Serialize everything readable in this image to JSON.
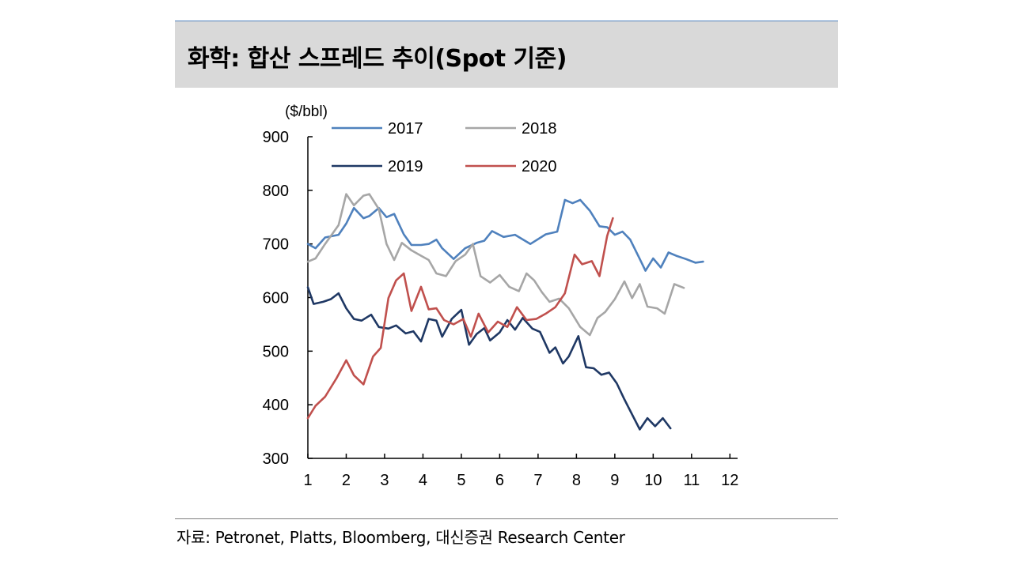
{
  "header": {
    "title": "화학: 합산 스프레드 추이(Spot 기준)"
  },
  "footer": {
    "source": "자료: Petronet, Platts, Bloomberg, 대신증권 Research Center"
  },
  "chart_data": {
    "type": "line",
    "title": "화학: 합산 스프레드 추이(Spot 기준)",
    "ylabel": "($/bbl)",
    "xlabel": "",
    "ylim": [
      300,
      900
    ],
    "xlim": [
      1,
      12.2
    ],
    "y_ticks": [
      "300",
      "400",
      "500",
      "600",
      "700",
      "800",
      "900"
    ],
    "x_ticks": [
      "1",
      "2",
      "3",
      "4",
      "5",
      "6",
      "7",
      "8",
      "9",
      "10",
      "11",
      "12"
    ],
    "grid": false,
    "legend_position": "top",
    "series": [
      {
        "name": "2017",
        "color": "#4f81bd",
        "points": [
          [
            1,
            700
          ],
          [
            1.2,
            692
          ],
          [
            1.45,
            712
          ],
          [
            1.8,
            717
          ],
          [
            2,
            738
          ],
          [
            2.2,
            767
          ],
          [
            2.45,
            748
          ],
          [
            2.6,
            752
          ],
          [
            2.85,
            767
          ],
          [
            3.05,
            750
          ],
          [
            3.25,
            756
          ],
          [
            3.5,
            718
          ],
          [
            3.7,
            698
          ],
          [
            3.95,
            698
          ],
          [
            4.15,
            700
          ],
          [
            4.35,
            708
          ],
          [
            4.5,
            692
          ],
          [
            4.8,
            672
          ],
          [
            5.1,
            692
          ],
          [
            5.4,
            702
          ],
          [
            5.6,
            706
          ],
          [
            5.8,
            724
          ],
          [
            6.1,
            713
          ],
          [
            6.4,
            717
          ],
          [
            6.8,
            700
          ],
          [
            7.2,
            718
          ],
          [
            7.5,
            723
          ],
          [
            7.7,
            782
          ],
          [
            7.9,
            776
          ],
          [
            8.1,
            782
          ],
          [
            8.35,
            762
          ],
          [
            8.6,
            733
          ],
          [
            8.8,
            731
          ],
          [
            9.0,
            717
          ],
          [
            9.2,
            723
          ],
          [
            9.4,
            708
          ],
          [
            9.65,
            672
          ],
          [
            9.8,
            650
          ],
          [
            10.0,
            673
          ],
          [
            10.2,
            656
          ],
          [
            10.4,
            684
          ],
          [
            10.6,
            678
          ],
          [
            10.85,
            672
          ],
          [
            11.1,
            665
          ],
          [
            11.3,
            667
          ]
        ]
      },
      {
        "name": "2018",
        "color": "#a6a6a6",
        "points": [
          [
            1,
            667
          ],
          [
            1.2,
            673
          ],
          [
            1.45,
            700
          ],
          [
            1.8,
            735
          ],
          [
            2,
            793
          ],
          [
            2.2,
            772
          ],
          [
            2.45,
            790
          ],
          [
            2.6,
            793
          ],
          [
            2.85,
            765
          ],
          [
            3.05,
            700
          ],
          [
            3.25,
            670
          ],
          [
            3.45,
            702
          ],
          [
            3.7,
            688
          ],
          [
            3.95,
            678
          ],
          [
            4.15,
            670
          ],
          [
            4.35,
            645
          ],
          [
            4.6,
            640
          ],
          [
            4.85,
            668
          ],
          [
            5.1,
            680
          ],
          [
            5.3,
            700
          ],
          [
            5.5,
            640
          ],
          [
            5.75,
            628
          ],
          [
            6.0,
            642
          ],
          [
            6.25,
            620
          ],
          [
            6.5,
            612
          ],
          [
            6.7,
            645
          ],
          [
            6.9,
            632
          ],
          [
            7.1,
            610
          ],
          [
            7.3,
            592
          ],
          [
            7.55,
            598
          ],
          [
            7.8,
            580
          ],
          [
            8.1,
            545
          ],
          [
            8.35,
            530
          ],
          [
            8.55,
            562
          ],
          [
            8.75,
            573
          ],
          [
            9.0,
            597
          ],
          [
            9.25,
            630
          ],
          [
            9.45,
            599
          ],
          [
            9.65,
            625
          ],
          [
            9.85,
            583
          ],
          [
            10.1,
            580
          ],
          [
            10.3,
            570
          ],
          [
            10.55,
            625
          ],
          [
            10.8,
            618
          ]
        ]
      },
      {
        "name": "2019",
        "color": "#1f3864",
        "points": [
          [
            1,
            619
          ],
          [
            1.15,
            588
          ],
          [
            1.4,
            592
          ],
          [
            1.6,
            597
          ],
          [
            1.8,
            608
          ],
          [
            2,
            580
          ],
          [
            2.2,
            560
          ],
          [
            2.4,
            557
          ],
          [
            2.65,
            568
          ],
          [
            2.85,
            545
          ],
          [
            3.1,
            542
          ],
          [
            3.3,
            548
          ],
          [
            3.55,
            533
          ],
          [
            3.75,
            537
          ],
          [
            3.95,
            518
          ],
          [
            4.15,
            560
          ],
          [
            4.35,
            557
          ],
          [
            4.5,
            527
          ],
          [
            4.75,
            560
          ],
          [
            5.0,
            577
          ],
          [
            5.2,
            512
          ],
          [
            5.4,
            532
          ],
          [
            5.6,
            543
          ],
          [
            5.75,
            520
          ],
          [
            6.0,
            535
          ],
          [
            6.2,
            558
          ],
          [
            6.4,
            540
          ],
          [
            6.6,
            562
          ],
          [
            6.85,
            542
          ],
          [
            7.05,
            536
          ],
          [
            7.3,
            497
          ],
          [
            7.45,
            507
          ],
          [
            7.65,
            477
          ],
          [
            7.8,
            490
          ],
          [
            8.05,
            528
          ],
          [
            8.25,
            470
          ],
          [
            8.45,
            468
          ],
          [
            8.65,
            456
          ],
          [
            8.85,
            460
          ],
          [
            9.05,
            440
          ],
          [
            9.25,
            410
          ],
          [
            9.5,
            375
          ],
          [
            9.65,
            354
          ],
          [
            9.85,
            375
          ],
          [
            10.05,
            360
          ],
          [
            10.25,
            375
          ],
          [
            10.45,
            356
          ]
        ]
      },
      {
        "name": "2020",
        "color": "#c0504d",
        "points": [
          [
            1,
            375
          ],
          [
            1.2,
            398
          ],
          [
            1.45,
            415
          ],
          [
            1.75,
            450
          ],
          [
            2,
            483
          ],
          [
            2.2,
            455
          ],
          [
            2.45,
            438
          ],
          [
            2.7,
            490
          ],
          [
            2.9,
            506
          ],
          [
            3.1,
            599
          ],
          [
            3.3,
            632
          ],
          [
            3.5,
            645
          ],
          [
            3.7,
            575
          ],
          [
            3.95,
            620
          ],
          [
            4.15,
            578
          ],
          [
            4.35,
            580
          ],
          [
            4.55,
            558
          ],
          [
            4.8,
            550
          ],
          [
            5.05,
            560
          ],
          [
            5.25,
            527
          ],
          [
            5.45,
            570
          ],
          [
            5.7,
            535
          ],
          [
            5.95,
            555
          ],
          [
            6.2,
            545
          ],
          [
            6.45,
            582
          ],
          [
            6.7,
            558
          ],
          [
            6.95,
            560
          ],
          [
            7.2,
            570
          ],
          [
            7.45,
            582
          ],
          [
            7.7,
            608
          ],
          [
            7.95,
            680
          ],
          [
            8.15,
            662
          ],
          [
            8.4,
            668
          ],
          [
            8.6,
            640
          ],
          [
            8.8,
            715
          ],
          [
            8.95,
            748
          ]
        ]
      }
    ]
  }
}
